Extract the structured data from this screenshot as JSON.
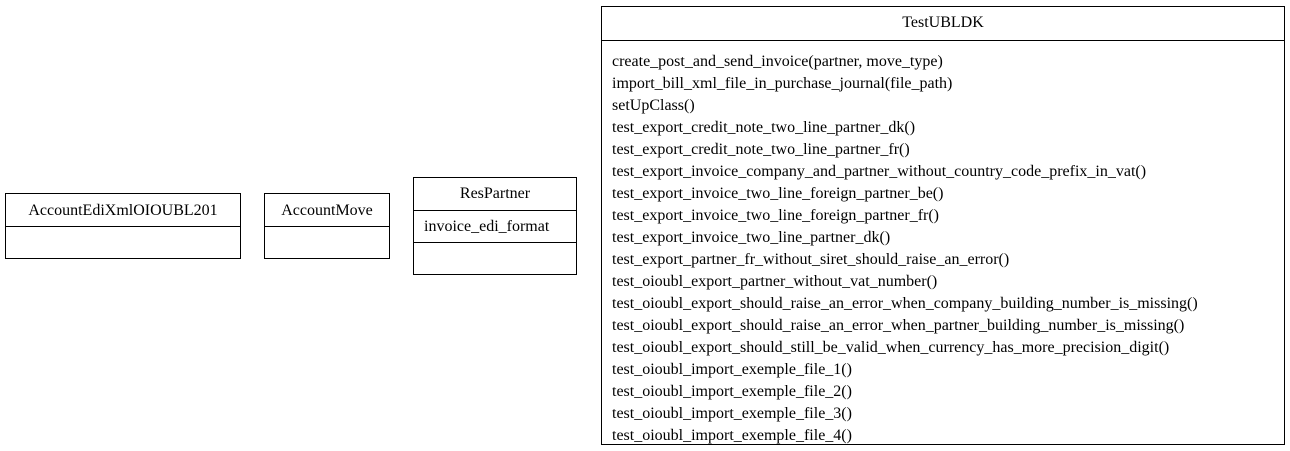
{
  "classes": {
    "edi": {
      "name": "AccountEdiXmlOIOUBL201",
      "attributes": [],
      "methods": []
    },
    "move": {
      "name": "AccountMove",
      "attributes": [],
      "methods": []
    },
    "partner": {
      "name": "ResPartner",
      "attributes": [
        "invoice_edi_format"
      ],
      "methods": []
    },
    "test": {
      "name": "TestUBLDK",
      "attributes": [],
      "methods": [
        "create_post_and_send_invoice(partner, move_type)",
        "import_bill_xml_file_in_purchase_journal(file_path)",
        "setUpClass()",
        "test_export_credit_note_two_line_partner_dk()",
        "test_export_credit_note_two_line_partner_fr()",
        "test_export_invoice_company_and_partner_without_country_code_prefix_in_vat()",
        "test_export_invoice_two_line_foreign_partner_be()",
        "test_export_invoice_two_line_foreign_partner_fr()",
        "test_export_invoice_two_line_partner_dk()",
        "test_export_partner_fr_without_siret_should_raise_an_error()",
        "test_oioubl_export_partner_without_vat_number()",
        "test_oioubl_export_should_raise_an_error_when_company_building_number_is_missing()",
        "test_oioubl_export_should_raise_an_error_when_partner_building_number_is_missing()",
        "test_oioubl_export_should_still_be_valid_when_currency_has_more_precision_digit()",
        "test_oioubl_import_exemple_file_1()",
        "test_oioubl_import_exemple_file_2()",
        "test_oioubl_import_exemple_file_3()",
        "test_oioubl_import_exemple_file_4()"
      ]
    }
  }
}
